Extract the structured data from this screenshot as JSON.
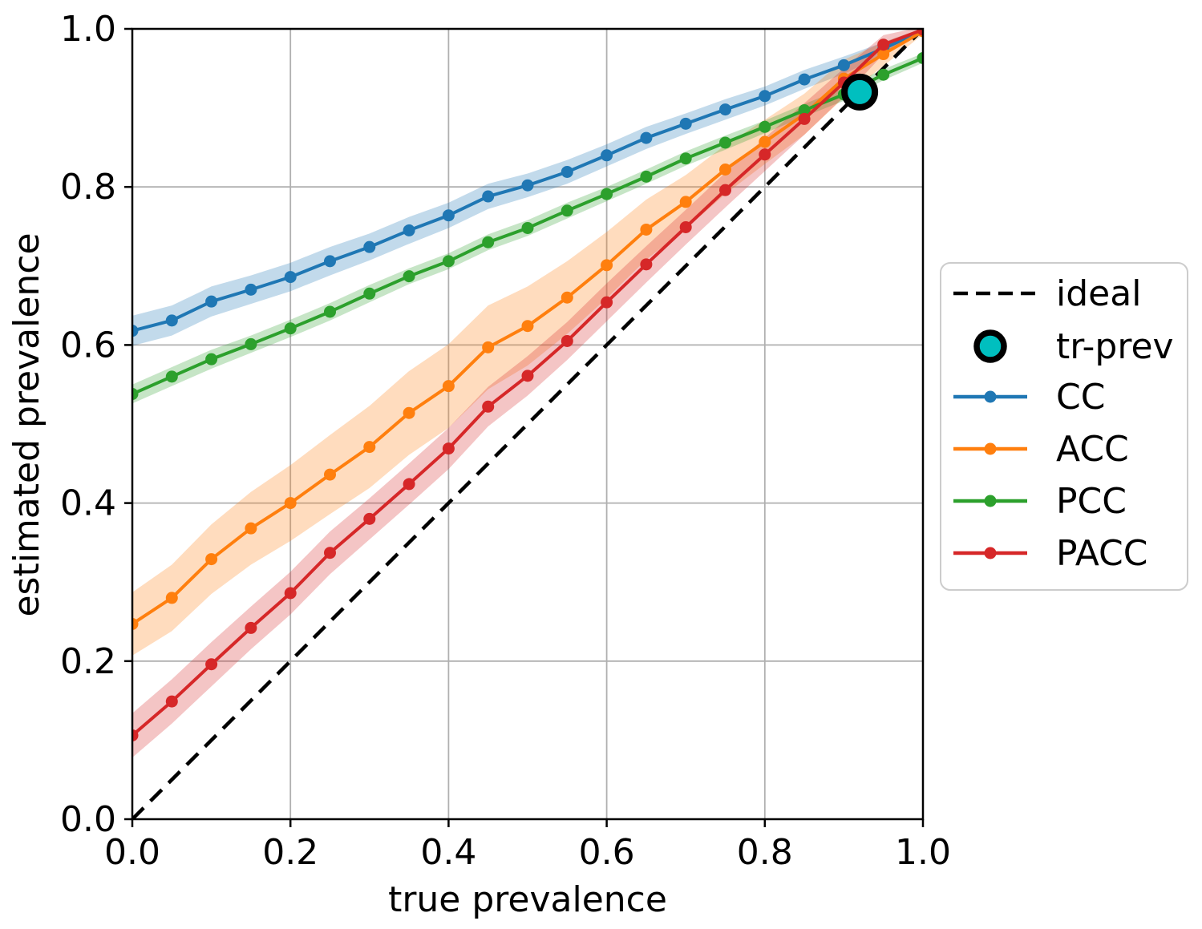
{
  "chart_data": {
    "type": "line",
    "title": "",
    "xlabel": "true prevalence",
    "ylabel": "estimated prevalence",
    "xlim": [
      0.0,
      1.0
    ],
    "ylim": [
      0.0,
      1.0
    ],
    "grid": true,
    "grid_color": "#b0b0b0",
    "xtick_labels": [
      "0.0",
      "0.2",
      "0.4",
      "0.6",
      "0.8",
      "1.0"
    ],
    "ytick_labels": [
      "0.0",
      "0.2",
      "0.4",
      "0.6",
      "0.8",
      "1.0"
    ],
    "band_opacity": 0.27,
    "x": [
      0.0,
      0.05,
      0.1,
      0.15,
      0.2,
      0.25,
      0.3,
      0.35,
      0.4,
      0.45,
      0.5,
      0.55,
      0.6,
      0.65,
      0.7,
      0.75,
      0.8,
      0.85,
      0.9,
      0.95,
      1.0
    ],
    "series": [
      {
        "name": "CC",
        "color": "#1f77b4",
        "values": [
          0.618,
          0.631,
          0.655,
          0.67,
          0.686,
          0.706,
          0.724,
          0.745,
          0.764,
          0.788,
          0.802,
          0.819,
          0.84,
          0.862,
          0.88,
          0.898,
          0.915,
          0.936,
          0.954,
          0.975,
          0.998
        ],
        "band_halfwidth": [
          0.019,
          0.019,
          0.019,
          0.018,
          0.018,
          0.018,
          0.017,
          0.017,
          0.016,
          0.016,
          0.015,
          0.015,
          0.014,
          0.014,
          0.013,
          0.013,
          0.012,
          0.012,
          0.011,
          0.008,
          0.003
        ]
      },
      {
        "name": "ACC",
        "color": "#ff7f0e",
        "values": [
          0.247,
          0.28,
          0.329,
          0.368,
          0.4,
          0.436,
          0.471,
          0.514,
          0.548,
          0.597,
          0.624,
          0.66,
          0.701,
          0.746,
          0.781,
          0.822,
          0.857,
          0.892,
          0.937,
          0.968,
          0.997
        ],
        "band_halfwidth": [
          0.04,
          0.042,
          0.044,
          0.046,
          0.048,
          0.05,
          0.052,
          0.053,
          0.053,
          0.053,
          0.05,
          0.046,
          0.042,
          0.038,
          0.034,
          0.031,
          0.028,
          0.026,
          0.024,
          0.015,
          0.004
        ]
      },
      {
        "name": "PCC",
        "color": "#2ca02c",
        "values": [
          0.538,
          0.56,
          0.582,
          0.601,
          0.621,
          0.642,
          0.665,
          0.687,
          0.706,
          0.73,
          0.748,
          0.77,
          0.791,
          0.813,
          0.836,
          0.856,
          0.876,
          0.897,
          0.917,
          0.942,
          0.963
        ],
        "band_halfwidth": [
          0.012,
          0.012,
          0.012,
          0.011,
          0.011,
          0.011,
          0.011,
          0.01,
          0.01,
          0.01,
          0.01,
          0.01,
          0.009,
          0.009,
          0.009,
          0.009,
          0.008,
          0.008,
          0.008,
          0.007,
          0.006
        ]
      },
      {
        "name": "PACC",
        "color": "#d62728",
        "values": [
          0.106,
          0.149,
          0.196,
          0.242,
          0.286,
          0.337,
          0.38,
          0.424,
          0.469,
          0.522,
          0.561,
          0.605,
          0.654,
          0.702,
          0.749,
          0.796,
          0.841,
          0.886,
          0.932,
          0.98,
          0.999
        ],
        "band_halfwidth": [
          0.028,
          0.028,
          0.028,
          0.027,
          0.027,
          0.027,
          0.026,
          0.026,
          0.026,
          0.025,
          0.025,
          0.024,
          0.024,
          0.023,
          0.022,
          0.022,
          0.021,
          0.02,
          0.018,
          0.012,
          0.004
        ]
      }
    ],
    "ideal": {
      "label": "ideal",
      "color": "#000000",
      "from": [
        0.0,
        0.0
      ],
      "to": [
        1.0,
        1.0
      ]
    },
    "tr_prev": {
      "label": "tr-prev",
      "x": 0.92,
      "y": 0.92,
      "fill": "#00bfbf",
      "edge": "#000000"
    },
    "legend": {
      "position": "center right",
      "entries": [
        "ideal",
        "tr-prev",
        "CC",
        "ACC",
        "PCC",
        "PACC"
      ]
    }
  }
}
